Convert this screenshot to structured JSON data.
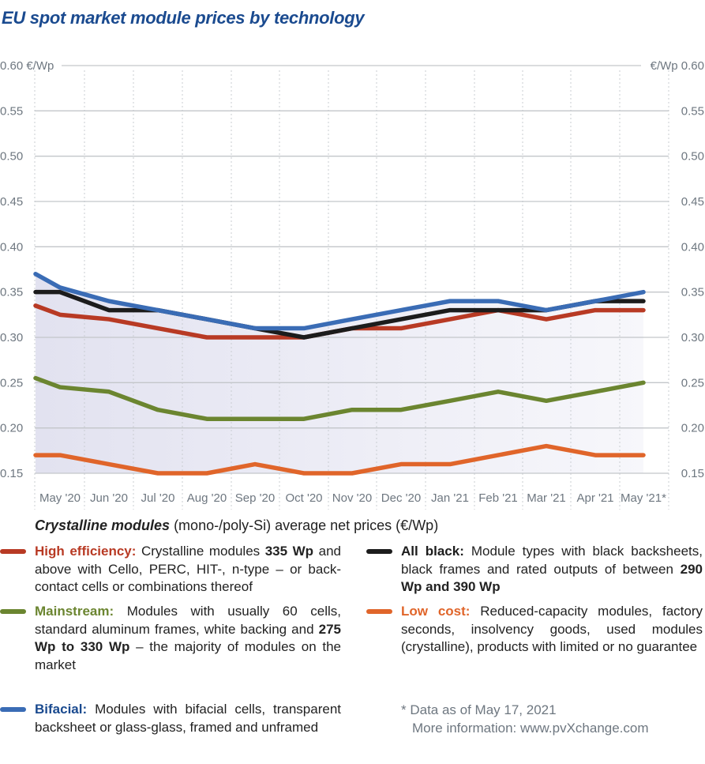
{
  "title": "EU spot market module prices  by technology",
  "chart_data": {
    "type": "line",
    "title": "EU spot market module prices  by technology",
    "ylabel_left": "0.60 €/Wp",
    "ylabel_right": "€/Wp 0.60",
    "unit": "€/Wp",
    "ylim": [
      0.15,
      0.6
    ],
    "yticks": [
      "0.60",
      "0.55",
      "0.50",
      "0.45",
      "0.40",
      "0.35",
      "0.30",
      "0.25",
      "0.20",
      "0.15"
    ],
    "categories": [
      "",
      "May '20",
      "Jun '20",
      "Jul '20",
      "Aug '20",
      "Sep '20",
      "Oct '20",
      "Nov '20",
      "Dec '20",
      "Jan '21",
      "Feb '21",
      "Mar '21",
      "Apr '21",
      "May '21*"
    ],
    "grid": true,
    "series": [
      {
        "name": "Bifacial",
        "color": "#3a6cb5",
        "values": [
          0.37,
          0.355,
          0.34,
          0.33,
          0.32,
          0.31,
          0.31,
          0.32,
          0.33,
          0.34,
          0.34,
          0.33,
          0.34,
          0.35
        ]
      },
      {
        "name": "All black",
        "color": "#1c1c1c",
        "values": [
          0.35,
          0.35,
          0.33,
          0.33,
          0.32,
          0.31,
          0.3,
          0.31,
          0.32,
          0.33,
          0.33,
          0.33,
          0.34,
          0.34
        ]
      },
      {
        "name": "High efficiency",
        "color": "#b83a24",
        "values": [
          0.335,
          0.325,
          0.32,
          0.31,
          0.3,
          0.3,
          0.3,
          0.31,
          0.31,
          0.32,
          0.33,
          0.32,
          0.33,
          0.33
        ]
      },
      {
        "name": "Mainstream",
        "color": "#6b8530",
        "values": [
          0.255,
          0.245,
          0.24,
          0.22,
          0.21,
          0.21,
          0.21,
          0.22,
          0.22,
          0.23,
          0.24,
          0.23,
          0.24,
          0.25
        ]
      },
      {
        "name": "Low cost",
        "color": "#e0652a",
        "values": [
          0.17,
          0.17,
          0.16,
          0.15,
          0.15,
          0.16,
          0.15,
          0.15,
          0.16,
          0.16,
          0.17,
          0.18,
          0.17,
          0.17
        ]
      }
    ]
  },
  "legend": {
    "heading_bold": "Crystalline modules",
    "heading_rest": " (mono-/poly-Si) average net prices (€/Wp)",
    "items": [
      {
        "name": "High efficiency:",
        "color": "#b83a24",
        "text_a": " Crystalline modules ",
        "bold_a": "335 Wp",
        "text_b": " and above with Cello, PERC, HIT-, n-type – or back-contact cells or combinations thereof"
      },
      {
        "name": "Mainstream:",
        "color": "#6b8530",
        "text_a": " Modules with usually 60 cells, standard aluminum frames, white backing and ",
        "bold_a": "275 Wp to 330 Wp",
        "text_b": " – the majority of modules on the market"
      },
      {
        "name": "Bifacial:",
        "color": "#1a4a8f",
        "text_a": " Modules with bifacial cells, transparent backsheet or glass-glass, framed and unframed",
        "bold_a": "",
        "text_b": ""
      },
      {
        "name": "All black:",
        "color": "#1c1c1c",
        "text_a": " Module types with black backsheets, black frames and rated outputs of between ",
        "bold_a": "290 Wp and 390 Wp",
        "text_b": ""
      },
      {
        "name": "Low cost:",
        "color": "#e0652a",
        "text_a": " Reduced-capacity modules, factory seconds, insolvency goods, used modules (crystalline), products with limited or no guarantee",
        "bold_a": "",
        "text_b": ""
      }
    ]
  },
  "notes": {
    "data_as_of": "* Data as of May 17, 2021",
    "more_info": "More information: www.pvXchange.com"
  }
}
